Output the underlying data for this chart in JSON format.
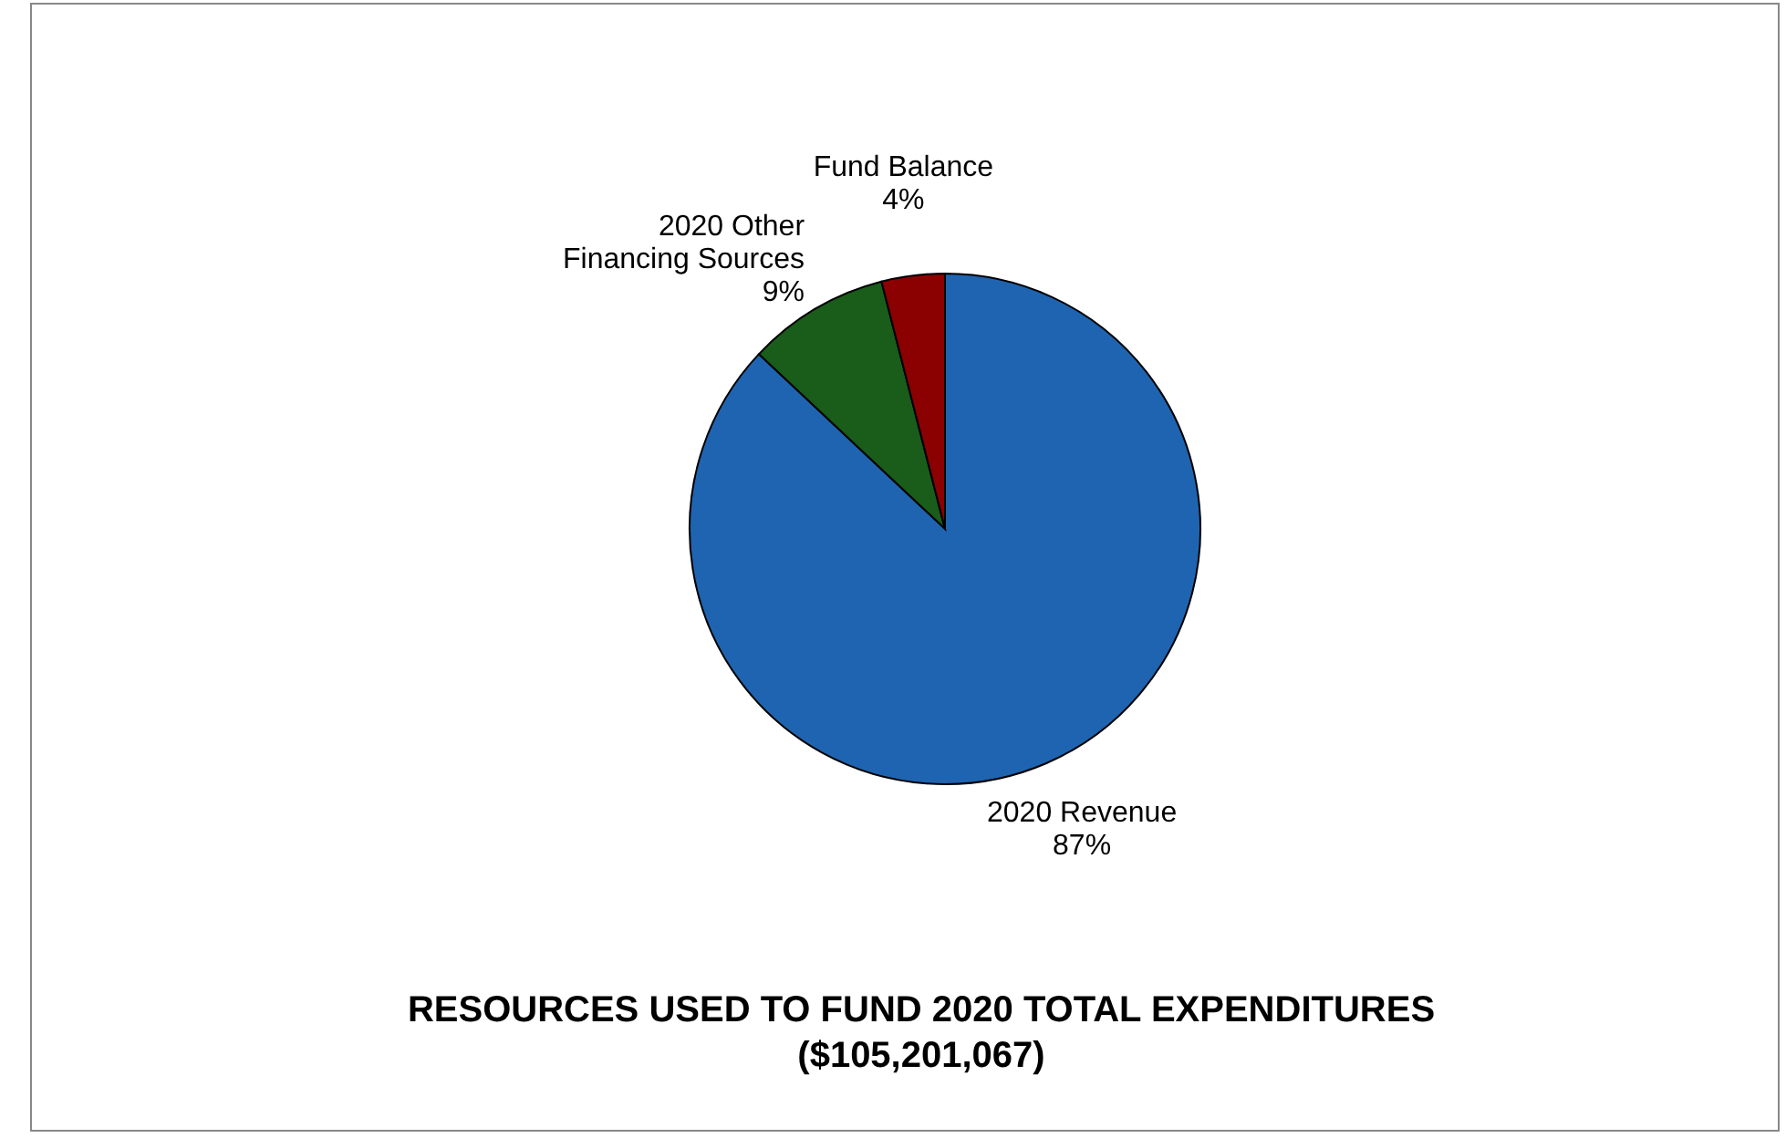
{
  "chart_data": {
    "type": "pie",
    "title": "RESOURCES USED TO FUND 2020 TOTAL EXPENDITURES",
    "subtitle": "($105,201,067)",
    "categories": [
      "2020 Revenue",
      "2020 Other Financing Sources",
      "Fund Balance"
    ],
    "values": [
      87,
      9,
      4
    ],
    "value_labels": [
      "87%",
      "9%",
      "4%"
    ],
    "colors": [
      "#1f64b0",
      "#1a5c1a",
      "#8b0000"
    ],
    "legend": false
  }
}
